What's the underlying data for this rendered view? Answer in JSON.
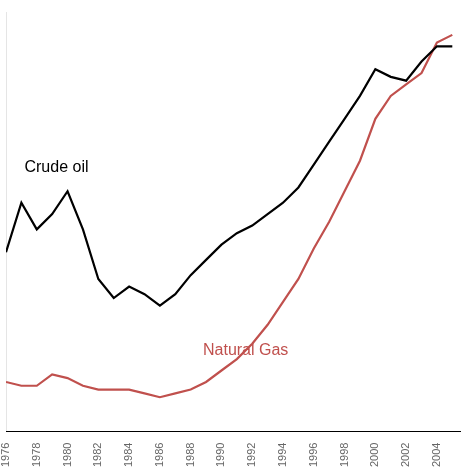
{
  "chart_data": {
    "type": "line",
    "x": [
      1976,
      1977,
      1978,
      1979,
      1980,
      1981,
      1982,
      1983,
      1984,
      1985,
      1986,
      1987,
      1988,
      1989,
      1990,
      1991,
      1992,
      1993,
      1994,
      1995,
      1996,
      1997,
      1998,
      1999,
      2000,
      2001,
      2002,
      2003,
      2004,
      2005
    ],
    "series": [
      {
        "name": "Crude oil",
        "color": "#000000",
        "values": [
          62,
          75,
          68,
          72,
          78,
          68,
          55,
          50,
          53,
          51,
          48,
          51,
          56,
          60,
          64,
          67,
          69,
          72,
          75,
          79,
          85,
          91,
          97,
          103,
          110,
          108,
          107,
          112,
          116,
          116
        ]
      },
      {
        "name": "Natural Gas",
        "color": "#c0504d",
        "values": [
          28,
          27,
          27,
          30,
          29,
          27,
          26,
          26,
          26,
          25,
          24,
          25,
          26,
          28,
          31,
          34,
          38,
          43,
          49,
          55,
          63,
          70,
          78,
          86,
          97,
          103,
          106,
          109,
          117,
          119
        ]
      }
    ],
    "annotations": [
      {
        "text": "Crude oil",
        "x": 1977.2,
        "y": 83
      },
      {
        "text": "Natural Gas",
        "x": 1988.8,
        "y": 35
      }
    ],
    "xlim": [
      1976,
      2005.5
    ],
    "xticks": [
      1976,
      1978,
      1980,
      1982,
      1984,
      1986,
      1988,
      1990,
      1992,
      1994,
      1996,
      1998,
      2000,
      2002,
      2004
    ],
    "ylim": [
      15,
      125
    ],
    "yticks": [],
    "tick_labels": "x",
    "grid": false
  }
}
